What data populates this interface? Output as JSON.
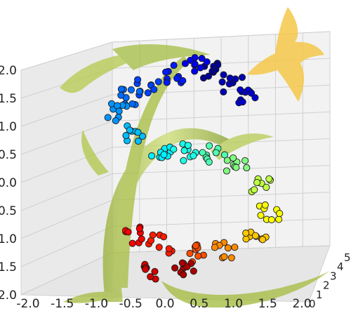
{
  "chart_data": {
    "type": "scatter",
    "projection": "3d",
    "title": "",
    "xlabel": "",
    "ylabel": "",
    "zlabel": "",
    "grid": true,
    "colormap": "jet",
    "z_ticks": [
      "2.0",
      "1.5",
      "1.0",
      "0.5",
      "0.0",
      "-0.5",
      "-1.0",
      "-1.5",
      "-2.0"
    ],
    "x_ticks": [
      "-2.0",
      "-1.5",
      "-1.0",
      "-0.5",
      "0.0",
      "0.5",
      "1.0",
      "1.5",
      "2.0"
    ],
    "y_ticks": [
      "0",
      "1",
      "2",
      "3",
      "4",
      "5"
    ],
    "xlim": [
      -2.0,
      2.0
    ],
    "ylim": [
      0,
      5
    ],
    "zlim": [
      -2.0,
      2.0
    ],
    "series": [
      {
        "points": [
          {
            "x": 0.5,
            "z": 1.75,
            "t": 0.02
          },
          {
            "x": 0.8,
            "z": 1.55,
            "t": 0.05
          },
          {
            "x": 1.1,
            "z": 1.35,
            "t": 0.08
          },
          {
            "x": 0.2,
            "z": 1.85,
            "t": 0.11
          },
          {
            "x": -0.2,
            "z": 1.7,
            "t": 0.15
          },
          {
            "x": -0.6,
            "z": 1.5,
            "t": 0.19
          },
          {
            "x": -0.9,
            "z": 1.3,
            "t": 0.23
          },
          {
            "x": -1.1,
            "z": 1.05,
            "t": 0.27
          },
          {
            "x": -0.8,
            "z": 0.7,
            "t": 0.31
          },
          {
            "x": -0.4,
            "z": 0.45,
            "t": 0.36
          },
          {
            "x": 0.0,
            "z": 0.4,
            "t": 0.4
          },
          {
            "x": 0.5,
            "z": 0.35,
            "t": 0.45
          },
          {
            "x": 0.9,
            "z": 0.15,
            "t": 0.5
          },
          {
            "x": 1.3,
            "z": -0.2,
            "t": 0.56
          },
          {
            "x": 1.45,
            "z": -0.6,
            "t": 0.62
          },
          {
            "x": 1.2,
            "z": -1.0,
            "t": 0.68
          },
          {
            "x": 0.7,
            "z": -1.25,
            "t": 0.74
          },
          {
            "x": 0.2,
            "z": -1.3,
            "t": 0.8
          },
          {
            "x": -0.4,
            "z": -1.15,
            "t": 0.85
          },
          {
            "x": -0.8,
            "z": -1.0,
            "t": 0.88
          },
          {
            "x": -0.5,
            "z": -1.6,
            "t": 0.92
          },
          {
            "x": 0.0,
            "z": -1.55,
            "t": 0.96
          }
        ]
      }
    ]
  }
}
